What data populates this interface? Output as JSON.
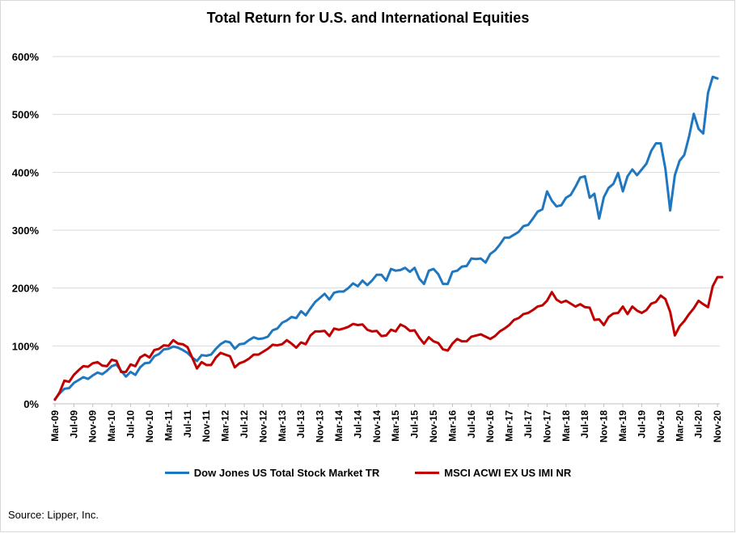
{
  "chart_data": {
    "type": "line",
    "title": "Total Return for U.S. and International Equities",
    "xlabel": "",
    "ylabel": "",
    "ylim": [
      0,
      600
    ],
    "y_ticks": [
      "0%",
      "100%",
      "200%",
      "300%",
      "400%",
      "500%",
      "600%"
    ],
    "x_tick_labels": [
      "Mar-09",
      "Jul-09",
      "Nov-09",
      "Mar-10",
      "Jul-10",
      "Nov-10",
      "Mar-11",
      "Jul-11",
      "Nov-11",
      "Mar-12",
      "Jul-12",
      "Nov-12",
      "Mar-13",
      "Jul-13",
      "Nov-13",
      "Mar-14",
      "Jul-14",
      "Nov-14",
      "Mar-15",
      "Jul-15",
      "Nov-15",
      "Mar-16",
      "Jul-16",
      "Nov-16",
      "Mar-17",
      "Jul-17",
      "Nov-17",
      "Mar-18",
      "Jul-18",
      "Nov-18",
      "Mar-19",
      "Jul-19",
      "Nov-19",
      "Mar-20",
      "Jul-20",
      "Nov-20"
    ],
    "x_start": "Mar-09",
    "grid": "horizontal",
    "legend_position": "bottom",
    "series": [
      {
        "name": "Dow Jones US Total Stock Market TR",
        "color": "#1f77c0",
        "values": [
          8,
          18,
          26,
          27,
          36,
          41,
          46,
          43,
          49,
          54,
          51,
          57,
          65,
          68,
          57,
          47,
          55,
          50,
          63,
          70,
          71,
          82,
          86,
          94,
          95,
          99,
          97,
          93,
          88,
          80,
          74,
          84,
          83,
          85,
          95,
          103,
          108,
          106,
          95,
          103,
          104,
          110,
          115,
          112,
          113,
          116,
          127,
          130,
          140,
          144,
          150,
          148,
          160,
          153,
          165,
          176,
          183,
          190,
          180,
          192,
          194,
          194,
          200,
          208,
          203,
          213,
          205,
          213,
          223,
          223,
          213,
          233,
          230,
          231,
          235,
          228,
          235,
          216,
          207,
          230,
          233,
          224,
          207,
          207,
          228,
          230,
          237,
          238,
          251,
          250,
          251,
          244,
          259,
          265,
          275,
          287,
          287,
          292,
          297,
          307,
          309,
          320,
          332,
          336,
          367,
          351,
          341,
          343,
          356,
          361,
          375,
          391,
          393,
          356,
          363,
          320,
          357,
          373,
          380,
          399,
          367,
          393,
          405,
          395,
          405,
          415,
          437,
          450,
          450,
          406,
          334,
          395,
          420,
          430,
          462,
          501,
          475,
          467,
          537,
          565,
          562
        ]
      },
      {
        "name": "MSCI ACWI EX US IMI NR",
        "color": "#c00000",
        "values": [
          7,
          20,
          40,
          38,
          50,
          58,
          65,
          64,
          70,
          72,
          66,
          65,
          76,
          74,
          55,
          55,
          68,
          65,
          80,
          85,
          80,
          93,
          95,
          101,
          100,
          110,
          104,
          103,
          98,
          80,
          61,
          72,
          67,
          67,
          80,
          88,
          85,
          82,
          63,
          70,
          73,
          78,
          85,
          85,
          90,
          95,
          102,
          101,
          103,
          110,
          104,
          97,
          106,
          103,
          118,
          125,
          125,
          126,
          117,
          130,
          128,
          130,
          133,
          138,
          136,
          137,
          128,
          125,
          126,
          117,
          118,
          128,
          125,
          137,
          133,
          126,
          127,
          114,
          104,
          115,
          108,
          105,
          94,
          92,
          104,
          112,
          108,
          108,
          116,
          118,
          120,
          116,
          112,
          117,
          125,
          130,
          136,
          145,
          148,
          155,
          157,
          162,
          168,
          170,
          178,
          193,
          180,
          175,
          178,
          173,
          168,
          172,
          167,
          166,
          145,
          146,
          136,
          150,
          156,
          157,
          168,
          155,
          168,
          161,
          157,
          162,
          173,
          176,
          187,
          181,
          159,
          118,
          134,
          143,
          155,
          165,
          178,
          172,
          167,
          203,
          219,
          219
        ]
      }
    ]
  },
  "source_text": "Source: Lipper, Inc."
}
